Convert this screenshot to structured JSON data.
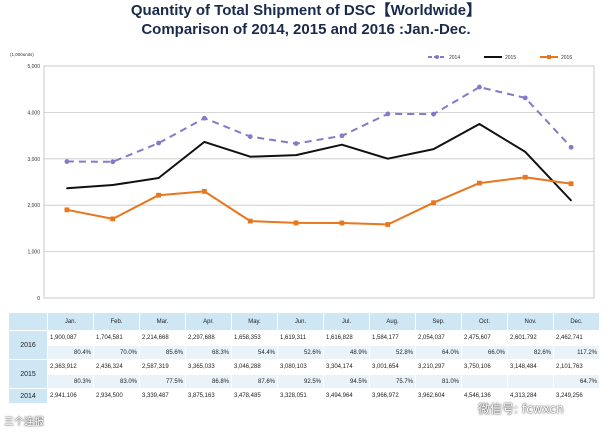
{
  "chart_data": {
    "type": "line",
    "title_line1": "Quantity of Total Shipment of DSC【Worldwide】",
    "title_line2": "Comparison of 2014, 2015 and 2016 :Jan.-Dec.",
    "unit_label": "(1,000units)",
    "ylim": [
      0,
      5000
    ],
    "y_ticks": [
      "0",
      "1,000",
      "2,000",
      "3,000",
      "4,000",
      "5,000"
    ],
    "grid": true,
    "legend_position": "top-right",
    "categories": [
      "Jan.",
      "Feb.",
      "Mar.",
      "Apr.",
      "May.",
      "Jun.",
      "Jul.",
      "Aug.",
      "Sep.",
      "Oct.",
      "Nov.",
      "Dec."
    ],
    "series": [
      {
        "name": "2014",
        "color": "#8878c8",
        "style": "dashed",
        "values": [
          2941,
          2935,
          3339,
          3875,
          3478,
          3328,
          3495,
          3967,
          3963,
          4546,
          4313,
          3249
        ],
        "value_labels": [
          "2,941,106",
          "2,934,500",
          "3,339,487",
          "3,875,163",
          "3,478,485",
          "3,328,051",
          "3,494,964",
          "3,966,972",
          "3,962,604",
          "4,546,136",
          "4,313,284",
          "3,249,256"
        ]
      },
      {
        "name": "2015",
        "color": "#111111",
        "style": "solid",
        "values": [
          2364,
          2436,
          2587,
          3365,
          3046,
          3080,
          3304,
          3002,
          3210,
          3750,
          3148,
          2102
        ],
        "value_labels": [
          "2,363,912",
          "2,436,324",
          "2,587,319",
          "3,365,033",
          "3,046,288",
          "3,080,103",
          "3,304,174",
          "3,001,654",
          "3,210,297",
          "3,750,106",
          "3,148,484",
          "2,101,763"
        ],
        "yoy_labels": [
          "80.3%",
          "83.0%",
          "77.5%",
          "86.8%",
          "87.6%",
          "92.5%",
          "94.5%",
          "75.7%",
          "81.0%",
          "",
          "",
          "64.7%"
        ]
      },
      {
        "name": "2016",
        "color": "#e8761c",
        "style": "solid",
        "values": [
          1900,
          1705,
          2215,
          2298,
          1658,
          1619,
          1617,
          1584,
          2054,
          2476,
          2602,
          2463
        ],
        "value_labels": [
          "1,900,087",
          "1,704,581",
          "2,214,668",
          "2,297,688",
          "1,658,353",
          "1,619,311",
          "1,616,828",
          "1,584,177",
          "2,054,037",
          "2,475,607",
          "2,601,792",
          "2,462,741"
        ],
        "yoy_labels": [
          "80.4%",
          "70.0%",
          "85.6%",
          "68.3%",
          "54.4%",
          "52.6%",
          "48.9%",
          "52.8%",
          "64.0%",
          "66.0%",
          "82.6%",
          "117.2%"
        ]
      }
    ]
  },
  "watermark_left": "三个连报",
  "watermark_right": "微信号: fcwxcn"
}
